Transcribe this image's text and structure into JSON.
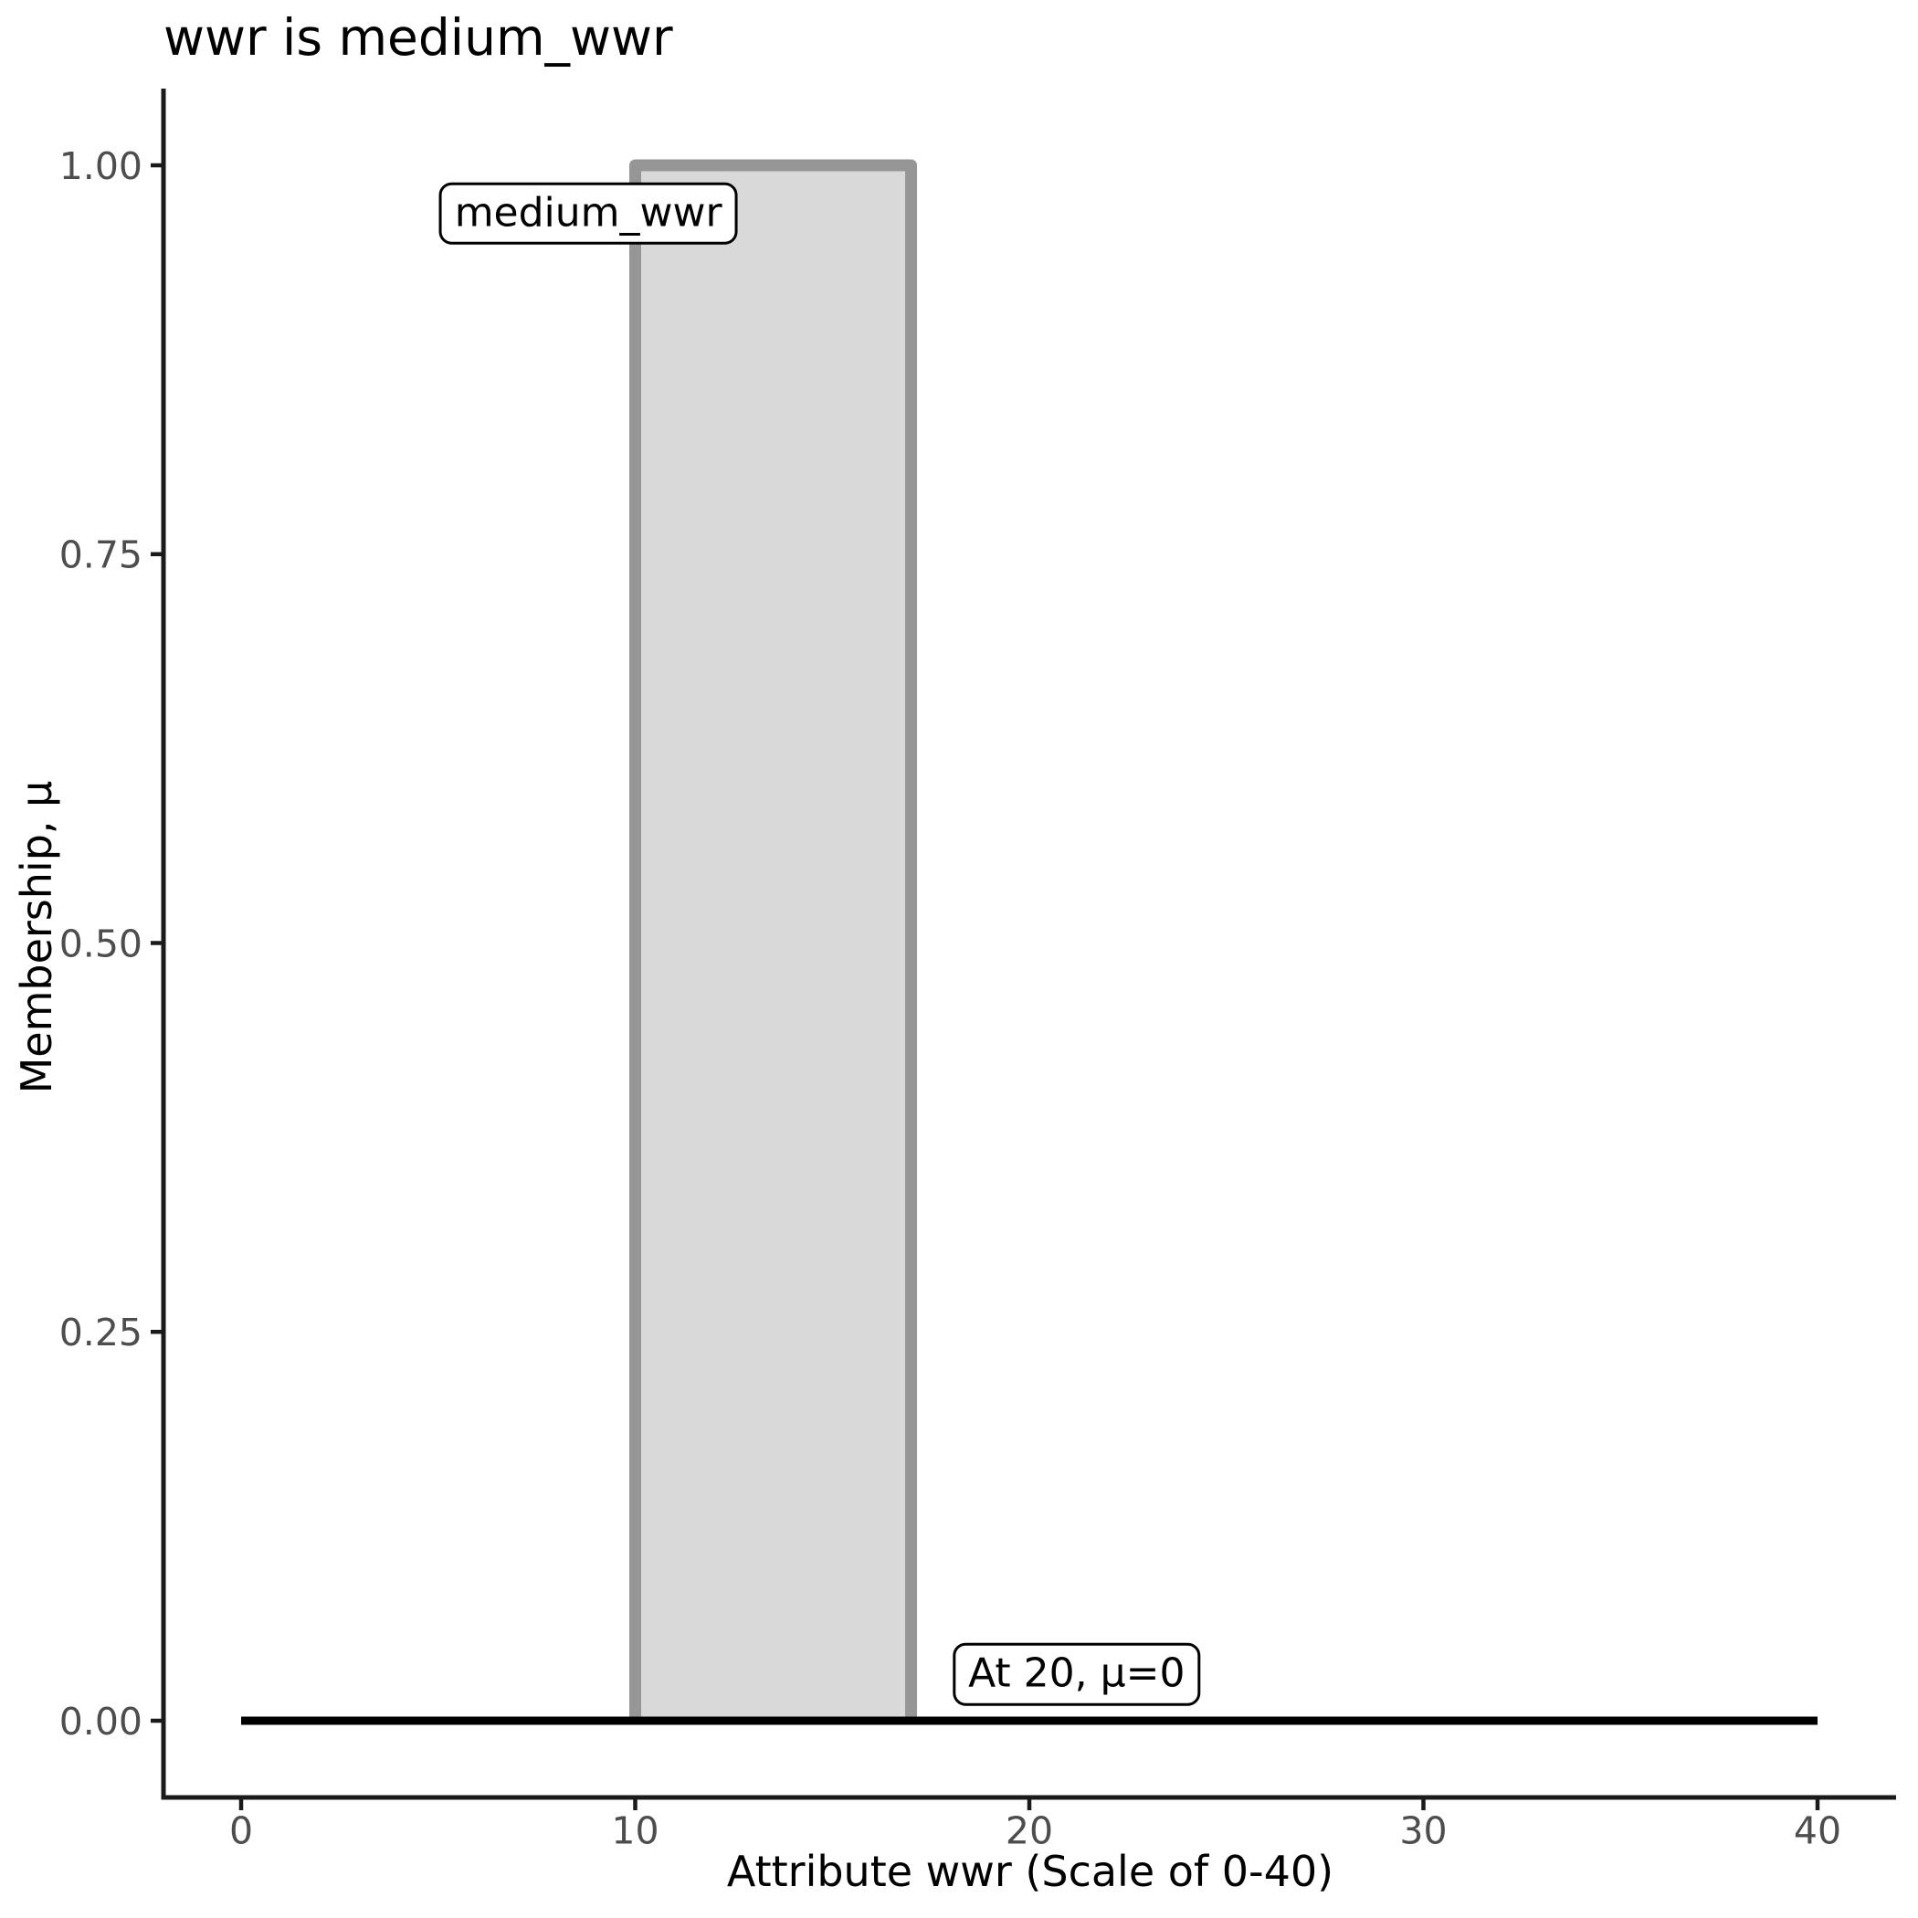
{
  "chart_data": {
    "type": "area",
    "title": "wwr is medium_wwr",
    "xlabel": "Attribute wwr (Scale of 0-40)",
    "ylabel": "Membership, μ",
    "xlim": [
      0,
      40
    ],
    "ylim": [
      0,
      1
    ],
    "grid": false,
    "legend": "none",
    "x_tick_values": [
      0,
      10,
      20,
      30,
      40
    ],
    "x_tick_labels": [
      "0",
      "10",
      "20",
      "30",
      "40"
    ],
    "y_tick_values": [
      0,
      0.25,
      0.5,
      0.75,
      1
    ],
    "y_tick_labels": [
      "0.00",
      "0.25",
      "0.50",
      "0.75",
      "1.00"
    ],
    "series": [
      {
        "name": "medium_wwr",
        "type": "membership-area",
        "points": [
          [
            10,
            0
          ],
          [
            10,
            1
          ],
          [
            17,
            1
          ],
          [
            17,
            0
          ]
        ],
        "fill": "#d9d9d9",
        "stroke": "#969696"
      },
      {
        "name": "baseline-mu-0",
        "type": "line",
        "points": [
          [
            0,
            0
          ],
          [
            40,
            0
          ]
        ],
        "stroke": "#000000"
      }
    ],
    "annotations": [
      {
        "text": "medium_wwr",
        "x": 8.81,
        "mu": 0.969
      },
      {
        "text": "At 20, μ=0",
        "x": 21.2,
        "mu": 0.03
      }
    ]
  },
  "colors": {
    "background": "#ffffff",
    "axis_line": "#1a1a1a",
    "tick_label": "#4d4d4d",
    "text": "#000000",
    "membership_fill": "#d9d9d9",
    "membership_stroke": "#969696",
    "baseline": "#000000",
    "annotation_bg": "#ffffff",
    "annotation_border": "#000000"
  }
}
